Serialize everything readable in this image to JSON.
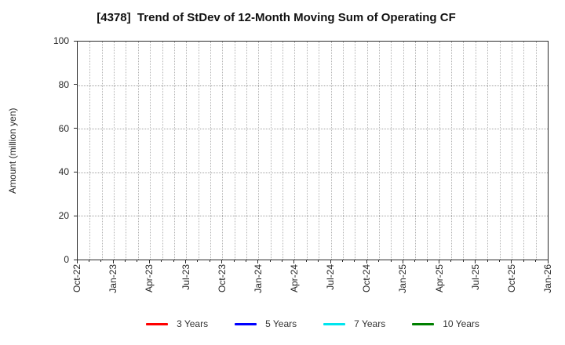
{
  "chart_data": {
    "type": "line",
    "title": "[4378]  Trend of StDev of 12-Month Moving Sum of Operating CF",
    "xlabel": "",
    "ylabel": "Amount (million yen)",
    "ylim": [
      0,
      100
    ],
    "yticks": [
      0,
      20,
      40,
      60,
      80,
      100
    ],
    "x": {
      "tick_labels": [
        "Oct-22",
        "Jan-23",
        "Apr-23",
        "Jul-23",
        "Oct-23",
        "Jan-24",
        "Apr-24",
        "Jul-24",
        "Oct-24",
        "Jan-25",
        "Apr-25",
        "Jul-25",
        "Oct-25",
        "Jan-26"
      ],
      "months_between_ticks": 3,
      "total_months": 39,
      "minor_gridlines": "monthly"
    },
    "grid": {
      "visible": true,
      "linestyle": "dotted"
    },
    "legend": {
      "position": "bottom-center"
    },
    "series": [
      {
        "name": "3 Years",
        "color": "#ff0000",
        "values": []
      },
      {
        "name": "5 Years",
        "color": "#0000ff",
        "values": []
      },
      {
        "name": "7 Years",
        "color": "#00e5ee",
        "values": []
      },
      {
        "name": "10 Years",
        "color": "#008000",
        "values": []
      }
    ],
    "plotted_data": "none visible (empty axes)"
  }
}
